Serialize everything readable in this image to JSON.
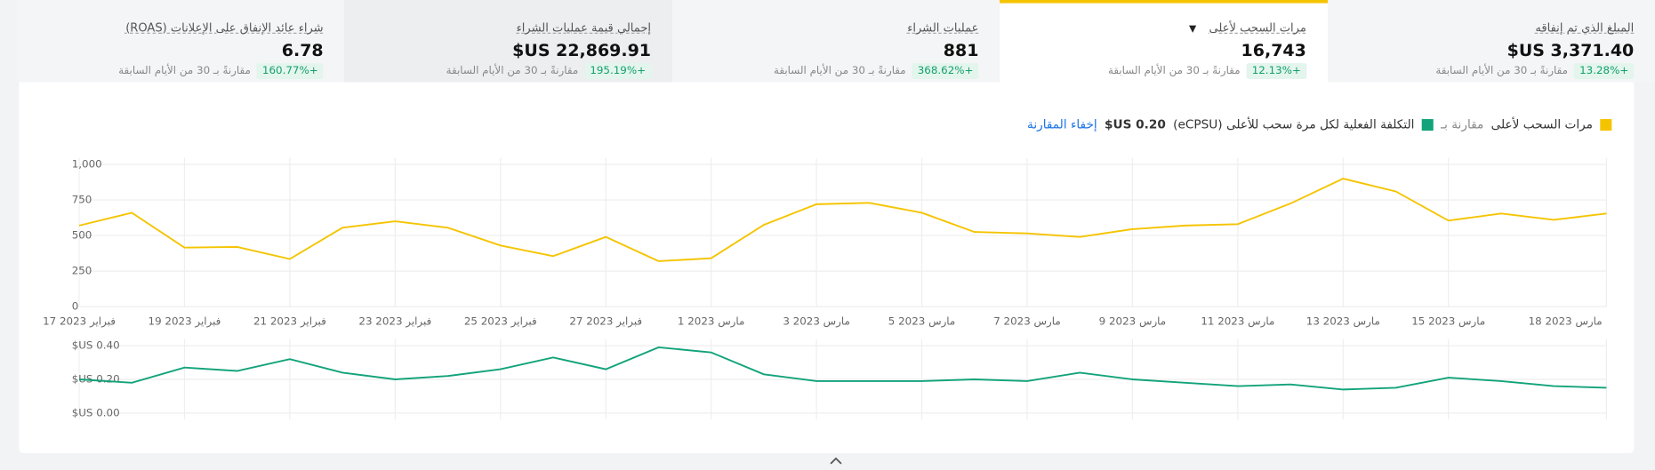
{
  "cards": [
    {
      "title": "المبلغ الذي تم إنفاقه",
      "value": "$US 3,371.40",
      "change": "+13.28%",
      "comparison": "مقارنةً بـ 30 من الأيام السابقة",
      "selected": false
    },
    {
      "title": "مرات السحب لأعلى",
      "value": "16,743",
      "change": "+12.13%",
      "comparison": "مقارنةً بـ 30 من الأيام السابقة",
      "selected": true
    },
    {
      "title": "عمليات الشراء",
      "value": "881",
      "change": "+368.62%",
      "comparison": "مقارنةً بـ 30 من الأيام السابقة",
      "selected": false
    },
    {
      "title": "إجمالي قيمة عمليات الشراء",
      "value": "$US 22,869.91",
      "change": "+195.19%",
      "comparison": "مقارنةً بـ 30 من الأيام السابقة",
      "selected": false
    },
    {
      "title": "شراء عائد الإنفاق على الإعلانات (ROAS)",
      "value": "6.78",
      "change": "+160.77%",
      "comparison": "مقارنةً بـ 30 من الأيام السابقة",
      "selected": false
    }
  ],
  "legend": {
    "compare_prefix": "مقارنة بـ",
    "compare_value": "$US 0.20",
    "hide_link": "إخفاء المقارنة"
  },
  "chart_data": [
    {
      "type": "line",
      "categories": [
        "17 فبراير 2023",
        null,
        "19 فبراير 2023",
        null,
        "21 فبراير 2023",
        null,
        "23 فبراير 2023",
        null,
        "25 فبراير 2023",
        null,
        "27 فبراير 2023",
        null,
        "1 مارس 2023",
        null,
        "3 مارس 2023",
        null,
        "5 مارس 2023",
        null,
        "7 مارس 2023",
        null,
        "9 مارس 2023",
        null,
        "11 مارس 2023",
        null,
        "13 مارس 2023",
        null,
        "15 مارس 2023",
        null,
        null,
        "18 مارس 2023"
      ],
      "series": [
        {
          "name": "مرات السحب لأعلى",
          "color": "#f5c400",
          "values": [
            570,
            660,
            415,
            420,
            335,
            555,
            600,
            555,
            430,
            355,
            490,
            320,
            340,
            575,
            720,
            730,
            660,
            525,
            515,
            490,
            545,
            570,
            580,
            725,
            900,
            810,
            605,
            655,
            610,
            655
          ]
        }
      ],
      "ylim": [
        0,
        1000
      ],
      "yticks": [
        0,
        250,
        500,
        750,
        {
          "value": 1000,
          "label": "1,000"
        }
      ],
      "grid": true
    },
    {
      "type": "line",
      "series": [
        {
          "name": "التكلفة الفعلية لكل مرة سحب للأعلى (eCPSU)",
          "color": "#12a37a",
          "values": [
            0.2,
            0.18,
            0.27,
            0.25,
            0.32,
            0.24,
            0.2,
            0.22,
            0.26,
            0.33,
            0.26,
            0.39,
            0.36,
            0.23,
            0.19,
            0.19,
            0.19,
            0.2,
            0.19,
            0.24,
            0.2,
            0.18,
            0.16,
            0.17,
            0.14,
            0.15,
            0.21,
            0.19,
            0.16,
            0.15
          ]
        }
      ],
      "ylim": [
        0,
        0.4
      ],
      "yticks": [
        {
          "value": 0,
          "label": "$US 0.00"
        },
        {
          "value": 0.2,
          "label": "$US 0.20"
        },
        {
          "value": 0.4,
          "label": "$US 0.40"
        }
      ],
      "grid": true
    }
  ]
}
